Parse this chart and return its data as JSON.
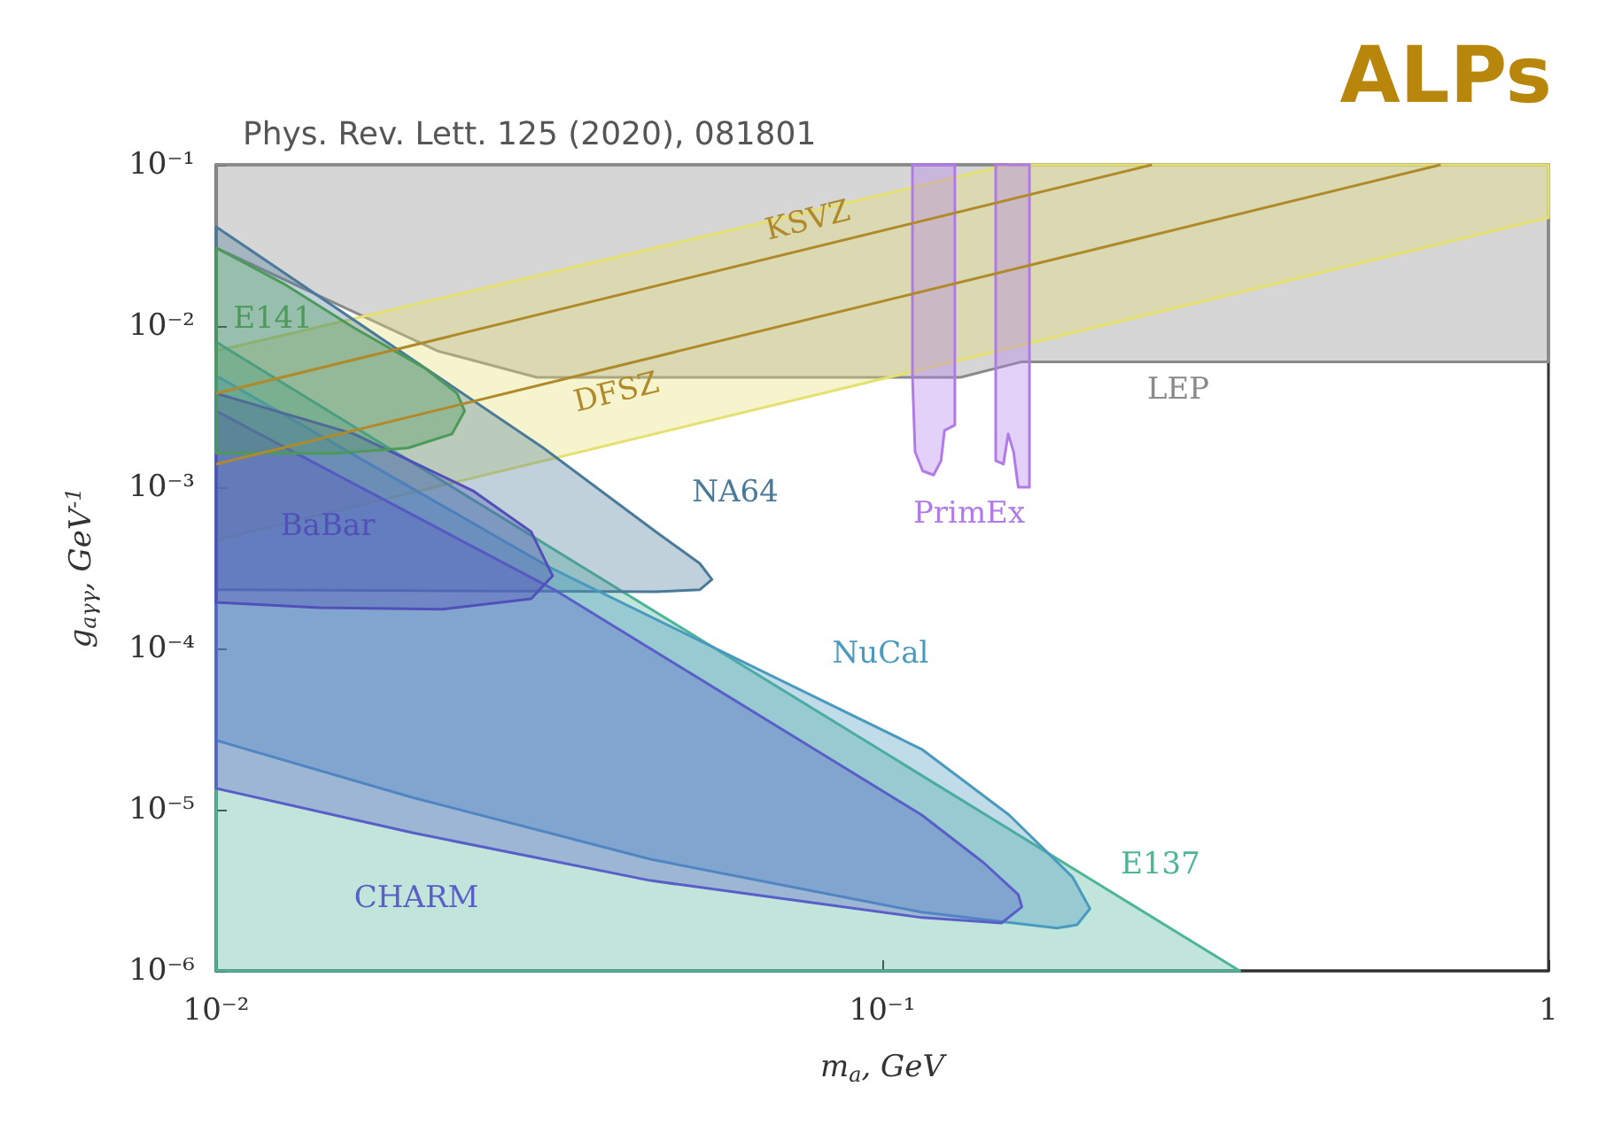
{
  "chart_data": {
    "type": "area",
    "title": "ALPs",
    "subtitle": "Phys. Rev. Lett. 125 (2020), 081801",
    "xlabel": "m$_{a}$, GeV",
    "ylabel": "g$_{aγγ}$, GeV$^{-1}$",
    "log": "xy",
    "grid": false,
    "xlim": [
      0.01,
      1
    ],
    "xticks": [
      {
        "value": 0.01,
        "label": "10⁻²"
      },
      {
        "value": 0.1,
        "label": "10⁻¹"
      },
      1
    ],
    "ylim": [
      1e-06,
      0.1
    ],
    "yticks": [
      {
        "value": 1e-06,
        "label": "10⁻⁶"
      },
      {
        "value": 1e-05,
        "label": "10⁻⁵"
      },
      {
        "value": 0.0001,
        "label": "10⁻⁴"
      },
      {
        "value": 0.001,
        "label": "10⁻³"
      },
      {
        "value": 0.01,
        "label": "10⁻²"
      },
      {
        "value": 0.1,
        "label": "10⁻¹"
      }
    ],
    "series": [
      {
        "name": "LEP",
        "color": "#8a8a8a",
        "x": [
          0.01,
          1,
          1,
          0.162,
          0.131,
          0.0303,
          0.0215,
          0.01
        ],
        "values": [
          0.1,
          0.1,
          0.006,
          0.006,
          0.0048,
          0.0048,
          0.007,
          0.0305
        ]
      },
      {
        "color": "#e6e070",
        "x": [
          0.01,
          0.155,
          1,
          1,
          0.01
        ],
        "values": [
          0.007,
          0.1,
          0.1,
          0.047,
          0.00047
        ]
      },
      {
        "name": "E137",
        "color": "#4cb596",
        "x": [
          0.01,
          0.344,
          0.01
        ],
        "values": [
          0.00796,
          1e-06,
          1e-06
        ]
      },
      {
        "name": "NA64",
        "color": "#4a7a9a",
        "x": [
          0.01,
          0.031,
          0.0457,
          0.0532,
          0.0555,
          0.0532,
          0.0457,
          0.01
        ],
        "values": [
          0.0412,
          0.00175,
          0.00053,
          0.000337,
          0.000268,
          0.000231,
          0.000225,
          0.000231
        ]
      },
      {
        "name": "NuCal",
        "color": "#4a9ac0",
        "x": [
          0.01,
          0.0316,
          0.1146,
          0.155,
          0.193,
          0.205,
          0.196,
          0.183,
          0.1146,
          0.0449,
          0.0197,
          0.01
        ],
        "values": [
          0.00492,
          0.00032,
          2.37e-05,
          9.27e-06,
          3.82e-06,
          2.43e-06,
          1.93e-06,
          1.84e-06,
          2.31e-06,
          4.92e-06,
          1.19e-05,
          2.69e-05
        ]
      },
      {
        "name": "CHARM",
        "color": "#5a5ec8",
        "x": [
          0.01,
          0.0322,
          0.1146,
          0.142,
          0.16,
          0.162,
          0.151,
          0.1146,
          0.0449,
          0.0197,
          0.01
        ],
        "values": [
          0.00297,
          0.000231,
          9.27e-06,
          4.68e-06,
          2.97e-06,
          2.49e-06,
          1.98e-06,
          2.14e-06,
          3.63e-06,
          7.19e-06,
          1.355e-05
        ]
      },
      {
        "name": "BaBar",
        "color": "#5050b8",
        "x": [
          0.01,
          0.0161,
          0.0243,
          0.0297,
          0.032,
          0.0297,
          0.0219,
          0.0143,
          0.01
        ],
        "values": [
          0.00382,
          0.00214,
          0.00095,
          0.00053,
          0.000282,
          0.000203,
          0.000175,
          0.000179,
          0.000193
        ]
      },
      {
        "name": "E141",
        "color": "#4c9a5a",
        "x": [
          0.01,
          0.0126,
          0.0161,
          0.0206,
          0.023,
          0.0236,
          0.0226,
          0.0194,
          0.0152,
          0.01
        ],
        "values": [
          0.0305,
          0.0184,
          0.00975,
          0.00545,
          0.00382,
          0.00297,
          0.00214,
          0.00175,
          0.00162,
          0.00162
        ]
      },
      {
        "name": "PrimEx",
        "color": "#b07ae8",
        "x": [
          0.111,
          0.1285,
          0.1285,
          0.124,
          0.1225,
          0.1194,
          0.115,
          0.112,
          0.111
        ],
        "values": [
          0.1,
          0.1,
          0.00243,
          0.00225,
          0.00146,
          0.00119,
          0.00126,
          0.00166,
          0.0048
        ]
      },
      {
        "color": "#b07ae8",
        "x": [
          0.148,
          0.1663,
          0.1663,
          0.16,
          0.1574,
          0.1545,
          0.152,
          0.148
        ],
        "values": [
          0.1,
          0.1,
          0.001,
          0.001,
          0.00166,
          0.00214,
          0.00139,
          0.00146
        ]
      },
      {
        "name": "KSVZ",
        "type": "line",
        "color": "#b08a2a",
        "x": [
          0.01,
          0.254
        ],
        "values": [
          0.00382,
          0.1
        ]
      },
      {
        "name": "DFSZ",
        "type": "line",
        "color": "#b08a2a",
        "x": [
          0.01,
          0.689
        ],
        "values": [
          0.00139,
          0.1
        ]
      }
    ]
  }
}
